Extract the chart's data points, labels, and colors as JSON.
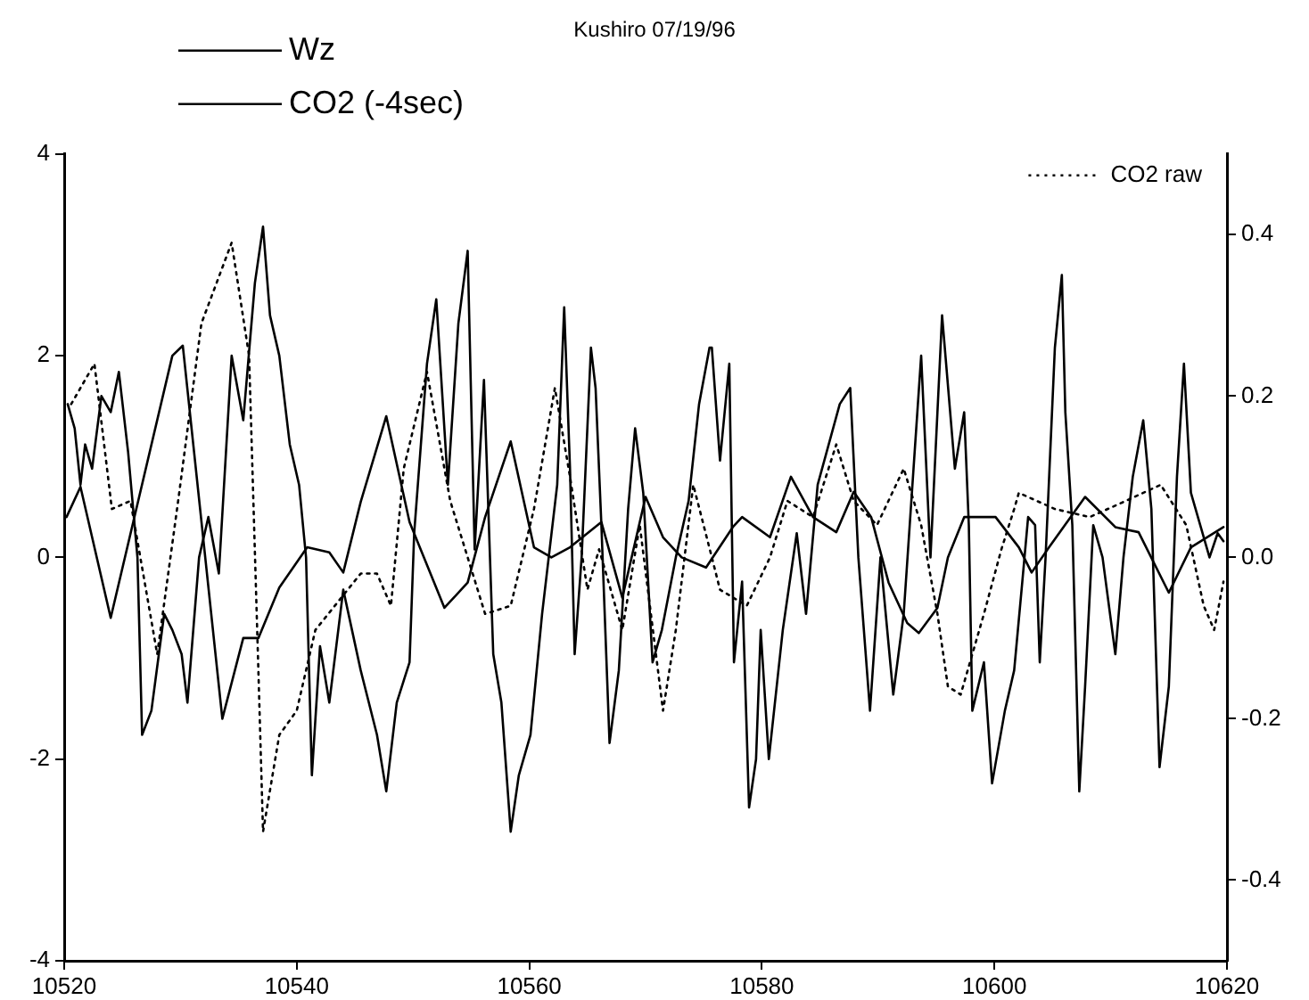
{
  "chart_data": {
    "type": "line",
    "title": "Kushiro 07/19/96",
    "legend": "top left",
    "grid": false,
    "marker": "none",
    "xlim": [
      10520,
      10620
    ],
    "xticks": [
      10520,
      10540,
      10560,
      10580,
      10600,
      10620
    ],
    "ylim": [
      -4,
      4
    ],
    "yticks": [
      -4,
      -2,
      0,
      2,
      4
    ],
    "y2lim": [
      -0.5,
      0.5
    ],
    "y2ticks": [
      -0.4,
      -0.2,
      {
        "value": 0,
        "label": "0.0"
      },
      0.2,
      0.4
    ],
    "series": [
      {
        "name": "Wz",
        "color": "#000000",
        "line_style": "solid",
        "x": [
          10520.2,
          10521.4,
          10524.0,
          10529.3,
          10530.2,
          10533.6,
          10535.4,
          10536.7,
          10538.5,
          10540.9,
          10542.8,
          10544.0,
          10545.5,
          10547.7,
          10549.7,
          10552.7,
          10554.7,
          10556.2,
          10558.4,
          10560.4,
          10561.9,
          10563.5,
          10566.2,
          10568.0,
          10570.0,
          10571.5,
          10573.1,
          10575.2,
          10577.5,
          10578.3,
          10580.7,
          10582.5,
          10584.4,
          10586.4,
          10587.9,
          10589.4,
          10590.9,
          10592.5,
          10593.5,
          10595.1,
          10596.0,
          10597.4,
          10600.1,
          10602.1,
          10603.2,
          10604.7,
          10607.8,
          10610.4,
          10612.4,
          10615.0,
          10616.9,
          10619.7
        ],
        "values": [
          0.4,
          0.7,
          -0.6,
          2.0,
          2.1,
          -1.6,
          -0.8,
          -0.8,
          -0.3,
          0.1,
          0.05,
          -0.15,
          0.55,
          1.4,
          0.35,
          -0.5,
          -0.25,
          0.4,
          1.15,
          0.1,
          0,
          0.1,
          0.35,
          -0.4,
          0.6,
          0.2,
          0,
          -0.1,
          0.3,
          0.4,
          0.2,
          0.8,
          0.4,
          0.25,
          0.65,
          0.4,
          -0.25,
          -0.65,
          -0.75,
          -0.5,
          0,
          0.4,
          0.4,
          0.1,
          -0.15,
          0.1,
          0.6,
          0.3,
          0.25,
          -0.35,
          0.1,
          0.3
        ]
      },
      {
        "name": "CO2 (-4sec)",
        "color": "#000000",
        "line_style": "solid",
        "axis": "y2",
        "x": [
          10520.3,
          10520.9,
          10521.4,
          10521.8,
          10522.4,
          10523.2,
          10524.0,
          10524.7,
          10525.5,
          10526.3,
          10526.7,
          10527.5,
          10528.6,
          10529.3,
          10530.1,
          10530.6,
          10531.6,
          10532.4,
          10533.3,
          10534.4,
          10535.4,
          10536.4,
          10537.1,
          10537.7,
          10538.5,
          10539.4,
          10540.2,
          10540.8,
          10541.3,
          10542.0,
          10542.8,
          10544.0,
          10545.5,
          10546.9,
          10547.7,
          10548.6,
          10549.7,
          10550.1,
          10551.2,
          10552.0,
          10553.0,
          10553.9,
          10554.7,
          10555.3,
          10556.1,
          10556.9,
          10557.6,
          10558.4,
          10559.1,
          10560.1,
          10561.1,
          10562.4,
          10563.0,
          10563.5,
          10563.9,
          10564.5,
          10565.3,
          10565.7,
          10566.2,
          10566.9,
          10567.7,
          10568.5,
          10569.1,
          10569.8,
          10570.6,
          10571.4,
          10572.6,
          10573.7,
          10574.6,
          10575.5,
          10575.7,
          10576.4,
          10577.2,
          10577.6,
          10578.3,
          10578.9,
          10579.5,
          10579.9,
          10580.6,
          10581.8,
          10583.0,
          10583.8,
          10584.8,
          10586.7,
          10587.6,
          10588.3,
          10589.3,
          10590.2,
          10591.3,
          10592.2,
          10593.7,
          10594.5,
          10595.5,
          10596.6,
          10597.4,
          10597.8,
          10598.1,
          10599.1,
          10599.8,
          10600.9,
          10601.7,
          10602.4,
          10602.9,
          10603.5,
          10603.9,
          10604.4,
          10605.2,
          10605.8,
          10606.1,
          10606.7,
          10607.3,
          10607.8,
          10608.5,
          10609.3,
          10610.4,
          10611.1,
          10611.9,
          10612.8,
          10613.5,
          10614.2,
          10615.0,
          10615.7,
          10616.3,
          10616.9,
          10617.7,
          10618.5,
          10619.2,
          10619.7
        ],
        "values": [
          0.19,
          0.16,
          0.09,
          0.14,
          0.11,
          0.2,
          0.18,
          0.23,
          0.13,
          0,
          -0.22,
          -0.19,
          -0.07,
          -0.09,
          -0.12,
          -0.18,
          0,
          0.05,
          -0.02,
          0.25,
          0.17,
          0.34,
          0.41,
          0.3,
          0.25,
          0.14,
          0.09,
          0,
          -0.27,
          -0.11,
          -0.18,
          -0.04,
          -0.14,
          -0.22,
          -0.29,
          -0.18,
          -0.13,
          0.03,
          0.24,
          0.32,
          0.09,
          0.29,
          0.38,
          0.01,
          0.22,
          -0.12,
          -0.18,
          -0.34,
          -0.27,
          -0.22,
          -0.07,
          0.09,
          0.31,
          0.11,
          -0.12,
          0,
          0.26,
          0.21,
          0.04,
          -0.23,
          -0.14,
          0.06,
          0.16,
          0.08,
          -0.13,
          -0.09,
          0,
          0.07,
          0.19,
          0.26,
          0.26,
          0.12,
          0.24,
          -0.13,
          -0.03,
          -0.31,
          -0.25,
          -0.09,
          -0.25,
          -0.09,
          0.03,
          -0.07,
          0.09,
          0.19,
          0.21,
          0,
          -0.19,
          0,
          -0.17,
          -0.07,
          0.25,
          0,
          0.3,
          0.11,
          0.18,
          0.04,
          -0.19,
          -0.13,
          -0.28,
          -0.19,
          -0.14,
          -0.03,
          0.05,
          0.04,
          -0.13,
          0,
          0.26,
          0.35,
          0.18,
          0.04,
          -0.29,
          -0.16,
          0.04,
          0,
          -0.12,
          0,
          0.1,
          0.17,
          0.06,
          -0.26,
          -0.16,
          0.1,
          0.24,
          0.08,
          0.04,
          0,
          0.03,
          0.02
        ]
      },
      {
        "name": "CO2 raw",
        "color": "#000000",
        "line_style": "dotted",
        "axis": "y2",
        "x": [
          10520.6,
          10522.6,
          10524.1,
          10525.7,
          10528.0,
          10529.8,
          10531.8,
          10534.4,
          10535.9,
          10536.7,
          10537.1,
          10538.5,
          10540.0,
          10541.6,
          10545.5,
          10546.9,
          10548.1,
          10549.2,
          10551.2,
          10553.2,
          10554.7,
          10556.2,
          10558.4,
          10560.4,
          10562.2,
          10563.5,
          10565.0,
          10566.0,
          10568.0,
          10569.5,
          10571.5,
          10572.6,
          10574.1,
          10575.7,
          10576.4,
          10578.7,
          10580.7,
          10582.2,
          10584.4,
          10586.4,
          10587.9,
          10589.9,
          10592.2,
          10593.7,
          10595.1,
          10596.0,
          10597.1,
          10599.1,
          10600.6,
          10601.7,
          10602.1,
          10605.2,
          10608.2,
          10611.3,
          10614.3,
          10616.5,
          10618.0,
          10618.9,
          10619.7
        ],
        "values": [
          0.19,
          0.24,
          0.06,
          0.07,
          -0.12,
          0.07,
          0.29,
          0.39,
          0.25,
          -0.14,
          -0.34,
          -0.22,
          -0.19,
          -0.09,
          -0.02,
          -0.02,
          -0.06,
          0.11,
          0.23,
          0.07,
          0,
          -0.07,
          -0.06,
          0.06,
          0.21,
          0.1,
          -0.04,
          0.01,
          -0.09,
          0.04,
          -0.19,
          -0.09,
          0.09,
          0,
          -0.04,
          -0.06,
          0,
          0.07,
          0.05,
          0.14,
          0.07,
          0.04,
          0.11,
          0.04,
          -0.07,
          -0.16,
          -0.17,
          -0.07,
          0.01,
          0.06,
          0.08,
          0.06,
          0.05,
          0.07,
          0.09,
          0.04,
          -0.06,
          -0.09,
          -0.03
        ]
      }
    ]
  }
}
